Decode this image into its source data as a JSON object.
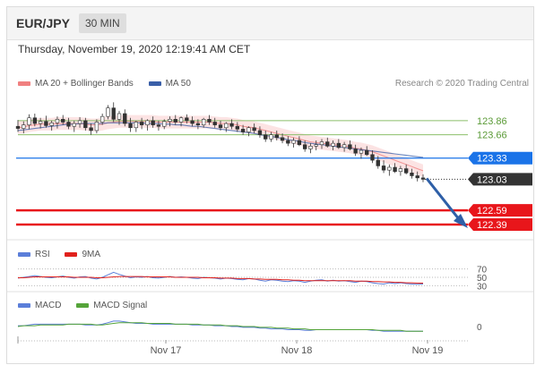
{
  "header": {
    "symbol": "EUR/JPY",
    "interval": "30 MIN"
  },
  "timestamp": "Thursday, November 19, 2020 12:19:41 AM CET",
  "legend": {
    "ma_bb": "MA 20 + Bollinger Bands",
    "ma50": "MA 50",
    "copyright": "Research © 2020 Trading Central"
  },
  "colors": {
    "ma_bb": "#f08080",
    "ma50": "#3a5fa8",
    "resistance": "#8bbf6a",
    "pivot": "#1a73e8",
    "support": "#e8161b",
    "last": "#333333",
    "arrow": "#2e5fa7",
    "rsi": "#5b7ed9",
    "rsi_ma": "#e0211c",
    "macd": "#5b7ed9",
    "macd_signal": "#55a43a"
  },
  "chart_data": [
    {
      "type": "candlestick",
      "x_labels": [
        "Nov 17",
        "Nov 18",
        "Nov 19"
      ],
      "ylim": [
        122.25,
        124.15
      ],
      "price_levels": [
        {
          "label": "123.86",
          "value": 123.86,
          "kind": "resistance"
        },
        {
          "label": "123.66",
          "value": 123.66,
          "kind": "resistance"
        },
        {
          "label": "123.33",
          "value": 123.33,
          "kind": "pivot"
        },
        {
          "label": "123.03",
          "value": 123.03,
          "kind": "last"
        },
        {
          "label": "122.59",
          "value": 122.59,
          "kind": "support"
        },
        {
          "label": "122.39",
          "value": 122.39,
          "kind": "support"
        }
      ],
      "ohlc": [
        [
          123.78,
          123.87,
          123.7,
          123.75
        ],
        [
          123.75,
          123.85,
          123.68,
          123.8
        ],
        [
          123.8,
          123.95,
          123.74,
          123.9
        ],
        [
          123.9,
          123.96,
          123.78,
          123.82
        ],
        [
          123.82,
          123.9,
          123.75,
          123.85
        ],
        [
          123.85,
          123.93,
          123.76,
          123.79
        ],
        [
          123.79,
          123.86,
          123.72,
          123.83
        ],
        [
          123.83,
          123.92,
          123.75,
          123.88
        ],
        [
          123.88,
          123.94,
          123.8,
          123.84
        ],
        [
          123.84,
          123.9,
          123.74,
          123.78
        ],
        [
          123.78,
          123.86,
          123.7,
          123.82
        ],
        [
          123.82,
          123.91,
          123.76,
          123.86
        ],
        [
          123.86,
          123.9,
          123.72,
          123.76
        ],
        [
          123.76,
          123.82,
          123.66,
          123.72
        ],
        [
          123.72,
          123.88,
          123.68,
          123.84
        ],
        [
          123.84,
          123.96,
          123.8,
          123.92
        ],
        [
          123.92,
          124.08,
          123.88,
          124.04
        ],
        [
          124.04,
          124.12,
          123.84,
          123.88
        ],
        [
          123.88,
          124.0,
          123.8,
          123.96
        ],
        [
          123.96,
          124.02,
          123.78,
          123.82
        ],
        [
          123.82,
          123.9,
          123.7,
          123.76
        ],
        [
          123.76,
          123.86,
          123.7,
          123.84
        ],
        [
          123.84,
          123.9,
          123.74,
          123.8
        ],
        [
          123.8,
          123.88,
          123.72,
          123.86
        ],
        [
          123.86,
          123.92,
          123.76,
          123.8
        ],
        [
          123.8,
          123.86,
          123.72,
          123.78
        ],
        [
          123.78,
          123.88,
          123.74,
          123.85
        ],
        [
          123.85,
          123.92,
          123.78,
          123.88
        ],
        [
          123.88,
          123.94,
          123.8,
          123.84
        ],
        [
          123.84,
          123.92,
          123.78,
          123.9
        ],
        [
          123.9,
          123.95,
          123.82,
          123.86
        ],
        [
          123.86,
          123.92,
          123.78,
          123.82
        ],
        [
          123.82,
          123.88,
          123.74,
          123.8
        ],
        [
          123.8,
          123.9,
          123.76,
          123.88
        ],
        [
          123.88,
          123.94,
          123.8,
          123.84
        ],
        [
          123.84,
          123.9,
          123.76,
          123.8
        ],
        [
          123.8,
          123.86,
          123.72,
          123.76
        ],
        [
          123.76,
          123.84,
          123.7,
          123.82
        ],
        [
          123.82,
          123.88,
          123.74,
          123.78
        ],
        [
          123.78,
          123.84,
          123.7,
          123.74
        ],
        [
          123.74,
          123.8,
          123.66,
          123.7
        ],
        [
          123.7,
          123.78,
          123.64,
          123.76
        ],
        [
          123.76,
          123.82,
          123.68,
          123.72
        ],
        [
          123.72,
          123.78,
          123.62,
          123.66
        ],
        [
          123.66,
          123.72,
          123.56,
          123.6
        ],
        [
          123.6,
          123.7,
          123.56,
          123.66
        ],
        [
          123.66,
          123.72,
          123.58,
          123.62
        ],
        [
          123.62,
          123.68,
          123.54,
          123.58
        ],
        [
          123.58,
          123.64,
          123.5,
          123.54
        ],
        [
          123.54,
          123.62,
          123.48,
          123.58
        ],
        [
          123.58,
          123.64,
          123.5,
          123.52
        ],
        [
          123.52,
          123.58,
          123.42,
          123.46
        ],
        [
          123.46,
          123.54,
          123.4,
          123.5
        ],
        [
          123.5,
          123.58,
          123.44,
          123.52
        ],
        [
          123.52,
          123.6,
          123.46,
          123.56
        ],
        [
          123.56,
          123.62,
          123.48,
          123.5
        ],
        [
          123.5,
          123.58,
          123.44,
          123.54
        ],
        [
          123.54,
          123.6,
          123.46,
          123.48
        ],
        [
          123.48,
          123.56,
          123.42,
          123.52
        ],
        [
          123.52,
          123.58,
          123.44,
          123.46
        ],
        [
          123.46,
          123.52,
          123.36,
          123.4
        ],
        [
          123.4,
          123.48,
          123.32,
          123.44
        ],
        [
          123.44,
          123.5,
          123.36,
          123.38
        ],
        [
          123.38,
          123.44,
          123.26,
          123.3
        ],
        [
          123.3,
          123.36,
          123.18,
          123.22
        ],
        [
          123.22,
          123.3,
          123.12,
          123.16
        ],
        [
          123.16,
          123.24,
          123.08,
          123.2
        ],
        [
          123.2,
          123.26,
          123.12,
          123.14
        ],
        [
          123.14,
          123.22,
          123.08,
          123.18
        ],
        [
          123.18,
          123.24,
          123.1,
          123.12
        ],
        [
          123.12,
          123.18,
          123.04,
          123.08
        ],
        [
          123.08,
          123.14,
          123.0,
          123.05
        ],
        [
          123.05,
          123.1,
          122.99,
          123.03
        ]
      ],
      "ma20": [
        123.76,
        123.77,
        123.79,
        123.8,
        123.81,
        123.81,
        123.81,
        123.82,
        123.82,
        123.82,
        123.82,
        123.82,
        123.81,
        123.8,
        123.8,
        123.81,
        123.83,
        123.84,
        123.85,
        123.85,
        123.85,
        123.85,
        123.85,
        123.85,
        123.85,
        123.84,
        123.84,
        123.84,
        123.84,
        123.84,
        123.84,
        123.84,
        123.84,
        123.84,
        123.84,
        123.83,
        123.82,
        123.82,
        123.81,
        123.8,
        123.78,
        123.77,
        123.76,
        123.74,
        123.72,
        123.7,
        123.68,
        123.66,
        123.64,
        123.62,
        123.6,
        123.58,
        123.56,
        123.55,
        123.54,
        123.53,
        123.52,
        123.51,
        123.5,
        123.49,
        123.47,
        123.46,
        123.44,
        123.42,
        123.39,
        123.36,
        123.33,
        123.3,
        123.27,
        123.24,
        123.21,
        123.18,
        123.15
      ],
      "ma50": [
        123.72,
        123.73,
        123.74,
        123.75,
        123.76,
        123.77,
        123.78,
        123.79,
        123.8,
        123.81,
        123.81,
        123.82,
        123.82,
        123.82,
        123.82,
        123.82,
        123.83,
        123.83,
        123.83,
        123.83,
        123.83,
        123.83,
        123.83,
        123.82,
        123.82,
        123.82,
        123.81,
        123.81,
        123.8,
        123.8,
        123.79,
        123.78,
        123.78,
        123.77,
        123.76,
        123.75,
        123.74,
        123.73,
        123.72,
        123.71,
        123.7,
        123.69,
        123.68,
        123.66,
        123.65,
        123.64,
        123.62,
        123.61,
        123.59,
        123.58,
        123.57,
        123.55,
        123.54,
        123.53,
        123.52,
        123.51,
        123.5,
        123.49,
        123.48,
        123.47,
        123.46,
        123.45,
        123.44,
        123.43,
        123.42,
        123.41,
        123.4,
        123.39,
        123.38,
        123.37,
        123.36,
        123.35,
        123.34
      ],
      "bb_width": 0.09
    },
    {
      "type": "line",
      "name_labels": {
        "rsi": "RSI",
        "ma": "9MA"
      },
      "ylim": [
        20,
        80
      ],
      "ticks": [
        "70",
        "50",
        "30"
      ],
      "tick_values": [
        70,
        50,
        30
      ],
      "rsi": [
        48,
        50,
        52,
        54,
        52,
        50,
        49,
        51,
        53,
        50,
        48,
        51,
        52,
        48,
        46,
        50,
        56,
        62,
        57,
        53,
        49,
        51,
        50,
        52,
        49,
        48,
        50,
        52,
        50,
        51,
        50,
        48,
        47,
        50,
        49,
        48,
        46,
        48,
        47,
        45,
        44,
        47,
        46,
        43,
        41,
        44,
        43,
        41,
        40,
        42,
        41,
        38,
        41,
        43,
        44,
        41,
        43,
        41,
        42,
        40,
        38,
        41,
        40,
        37,
        35,
        34,
        37,
        35,
        37,
        35,
        34,
        33,
        34
      ],
      "rsi_ma": [
        49,
        49,
        50,
        51,
        51,
        51,
        51,
        51,
        51,
        51,
        50,
        50,
        50,
        50,
        49,
        49,
        50,
        51,
        52,
        52,
        52,
        52,
        52,
        51,
        51,
        51,
        51,
        51,
        50,
        50,
        50,
        50,
        50,
        49,
        49,
        49,
        48,
        48,
        48,
        47,
        47,
        47,
        46,
        46,
        45,
        45,
        45,
        44,
        44,
        43,
        43,
        42,
        42,
        42,
        42,
        42,
        42,
        42,
        42,
        42,
        41,
        41,
        41,
        40,
        40,
        39,
        39,
        38,
        38,
        37,
        37,
        36,
        36
      ]
    },
    {
      "type": "line",
      "name_labels": {
        "macd": "MACD",
        "signal": "MACD Signal"
      },
      "ylim": [
        -0.15,
        0.15
      ],
      "ticks": [
        "0"
      ],
      "tick_values": [
        0
      ],
      "macd": [
        0.01,
        0.01,
        0.02,
        0.03,
        0.03,
        0.03,
        0.03,
        0.03,
        0.03,
        0.03,
        0.03,
        0.03,
        0.02,
        0.02,
        0.02,
        0.03,
        0.05,
        0.07,
        0.07,
        0.06,
        0.05,
        0.04,
        0.04,
        0.04,
        0.03,
        0.03,
        0.03,
        0.03,
        0.03,
        0.03,
        0.03,
        0.02,
        0.02,
        0.02,
        0.02,
        0.01,
        0.01,
        0.01,
        0.0,
        0.0,
        -0.01,
        -0.01,
        -0.01,
        -0.02,
        -0.02,
        -0.03,
        -0.03,
        -0.03,
        -0.04,
        -0.04,
        -0.04,
        -0.05,
        -0.05,
        -0.04,
        -0.04,
        -0.04,
        -0.04,
        -0.04,
        -0.04,
        -0.04,
        -0.04,
        -0.04,
        -0.04,
        -0.05,
        -0.05,
        -0.06,
        -0.06,
        -0.06,
        -0.06,
        -0.06,
        -0.06,
        -0.06,
        -0.06
      ],
      "signal": [
        0.0,
        0.01,
        0.01,
        0.01,
        0.02,
        0.02,
        0.02,
        0.02,
        0.02,
        0.03,
        0.03,
        0.03,
        0.03,
        0.03,
        0.02,
        0.02,
        0.03,
        0.04,
        0.05,
        0.05,
        0.05,
        0.05,
        0.05,
        0.04,
        0.04,
        0.04,
        0.04,
        0.04,
        0.03,
        0.03,
        0.03,
        0.03,
        0.03,
        0.02,
        0.02,
        0.02,
        0.02,
        0.01,
        0.01,
        0.01,
        0.0,
        0.0,
        0.0,
        -0.01,
        -0.01,
        -0.01,
        -0.02,
        -0.02,
        -0.02,
        -0.03,
        -0.03,
        -0.03,
        -0.04,
        -0.04,
        -0.04,
        -0.04,
        -0.04,
        -0.04,
        -0.04,
        -0.04,
        -0.04,
        -0.04,
        -0.04,
        -0.04,
        -0.05,
        -0.05,
        -0.05,
        -0.05,
        -0.05,
        -0.06,
        -0.06,
        -0.06,
        -0.06
      ]
    }
  ],
  "rsi_legend": {
    "rsi": "RSI",
    "ma": "9MA"
  },
  "macd_legend": {
    "macd": "MACD",
    "signal": "MACD Signal"
  }
}
